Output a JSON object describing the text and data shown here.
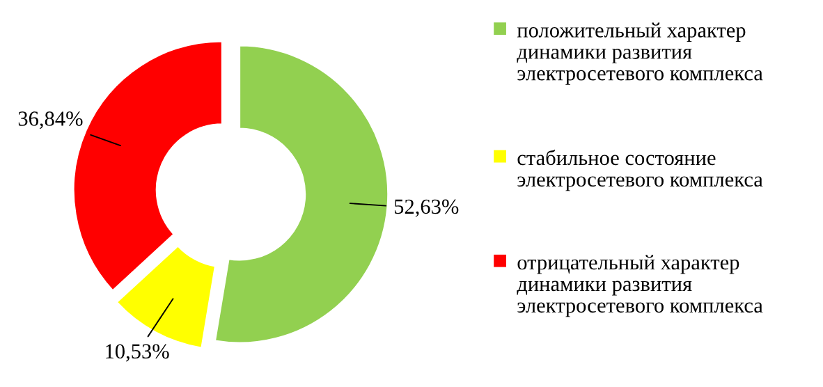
{
  "chart_data": {
    "type": "donut",
    "categories": [
      "положительный характер динамики развития электросетевого комплекса",
      "стабильное состояние электросетевого комплекса",
      "отрицательный характер динамики развития электросетевого комплекса"
    ],
    "values": [
      52.63,
      10.53,
      36.84
    ],
    "colors": [
      "#92d050",
      "#ffff00",
      "#ff0000"
    ],
    "value_labels": [
      "52,63%",
      "10,53%",
      "36,84%"
    ],
    "legend": "right"
  }
}
